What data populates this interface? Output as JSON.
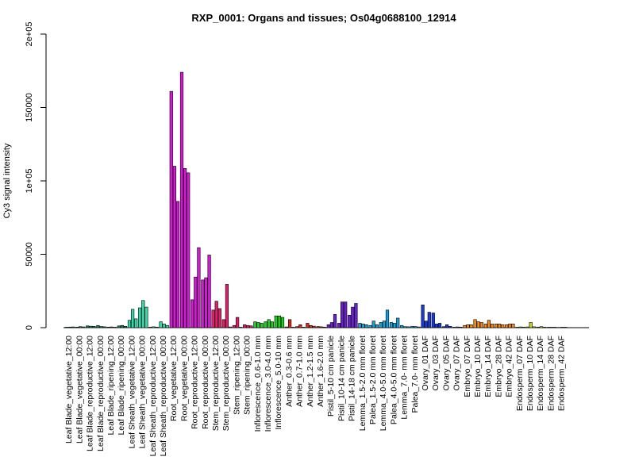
{
  "chart_data": {
    "type": "bar",
    "title": "RXP_0001: Organs and tissues; Os04g0688100_12914",
    "xlabel": "",
    "ylabel": "Cy3 signal intensity",
    "ylim": [
      0,
      200000
    ],
    "yticks": [
      {
        "value": 0,
        "label": "0"
      },
      {
        "value": 50000,
        "label": "50000"
      },
      {
        "value": 100000,
        "label": "1e+05"
      },
      {
        "value": 150000,
        "label": "150000"
      },
      {
        "value": 200000,
        "label": "2e+05"
      }
    ],
    "grid": false,
    "legend": "none",
    "groups": [
      {
        "label": "Leaf Blade_vegetative_12:00",
        "color": "#1a7f5a",
        "values": [
          300,
          400,
          500
        ]
      },
      {
        "label": "Leaf Blade_vegetative_00:00",
        "color": "#1a7f5a",
        "values": [
          400,
          700,
          500
        ]
      },
      {
        "label": "Leaf Blade_reproductive_12:00",
        "color": "#1a7f5a",
        "values": [
          1200,
          1000,
          900
        ]
      },
      {
        "label": "Leaf Blade_reproductive_00:00",
        "color": "#1a7f5a",
        "values": [
          1500,
          800,
          600
        ]
      },
      {
        "label": "Leaf Blade_ripening_12:00",
        "color": "#1a7f5a",
        "values": [
          400,
          500,
          300
        ]
      },
      {
        "label": "Leaf Blade_ripening_00:00",
        "color": "#1a7f5a",
        "values": [
          1200,
          1500,
          900
        ]
      },
      {
        "label": "Leaf Sheath_vegetative_12:00",
        "color": "#3ad6a8",
        "values": [
          5000,
          12500,
          6000
        ]
      },
      {
        "label": "Leaf Sheath_vegetative_00:00",
        "color": "#3ad6a8",
        "values": [
          13500,
          18500,
          14000
        ]
      },
      {
        "label": "Leaf Sheath_reproductive_12:00",
        "color": "#3ad6a8",
        "values": [
          400,
          600,
          400
        ]
      },
      {
        "label": "Leaf Sheath_reproductive_00:00",
        "color": "#3ad6a8",
        "values": [
          4000,
          2500,
          1500
        ]
      },
      {
        "label": "Root_vegetative_12:00",
        "color": "#d41ad4",
        "values": [
          161000,
          110000,
          86000
        ]
      },
      {
        "label": "Root_vegetative_00:00",
        "color": "#d41ad4",
        "values": [
          174000,
          108500,
          105500
        ]
      },
      {
        "label": "Root_reproductive_12:00",
        "color": "#d41ad4",
        "values": [
          19000,
          34500,
          54500
        ]
      },
      {
        "label": "Root_reproductive_00:00",
        "color": "#d41ad4",
        "values": [
          32500,
          34000,
          49500
        ]
      },
      {
        "label": "Stem_reproductive_12:00",
        "color": "#e0206a",
        "values": [
          12000,
          18000,
          13000
        ]
      },
      {
        "label": "Stem_reproductive_00:00",
        "color": "#e0206a",
        "values": [
          5500,
          29500,
          500
        ]
      },
      {
        "label": "Stem_ripening_12:00",
        "color": "#e0206a",
        "values": [
          1500,
          7000,
          300
        ]
      },
      {
        "label": "Stem_ripening_00:00",
        "color": "#e0206a",
        "values": [
          2000,
          1500,
          1200
        ]
      },
      {
        "label": "Inflorescence_0.6-1.0 mm",
        "color": "#22cc22",
        "values": [
          4000,
          3500,
          3000
        ]
      },
      {
        "label": "Inflorescence_3.0-4.0 mm",
        "color": "#22cc22",
        "values": [
          4000,
          5500,
          4000
        ]
      },
      {
        "label": "Inflorescence_5.0-10 mm",
        "color": "#22cc22",
        "values": [
          8000,
          8000,
          7000
        ]
      },
      {
        "label": "Anther_0.3-0.6 mm",
        "color": "#d42a1a",
        "values": [
          500,
          5500,
          300
        ]
      },
      {
        "label": "Anther_0.7-1.0 mm",
        "color": "#d42a1a",
        "values": [
          700,
          2000,
          300
        ]
      },
      {
        "label": "Anther_1.2-1.5 mm",
        "color": "#d42a1a",
        "values": [
          3000,
          1500,
          1000
        ]
      },
      {
        "label": "Anther_1.6-2.0 mm",
        "color": "#d42a1a",
        "values": [
          800,
          600,
          400
        ]
      },
      {
        "label": "Pistil_5-10 cm panicle",
        "color": "#6a22cc",
        "values": [
          2000,
          3500,
          9000
        ]
      },
      {
        "label": "Pistil_10-14 cm panicle",
        "color": "#6a22cc",
        "values": [
          3000,
          17500,
          17500
        ]
      },
      {
        "label": "Pistil_14-18 cm panicle",
        "color": "#6a22cc",
        "values": [
          8500,
          14000,
          16500
        ]
      },
      {
        "label": "Lemma_1.5-2.0 mm floret",
        "color": "#1aa0d8",
        "values": [
          3000,
          2500,
          2000
        ]
      },
      {
        "label": "Palea_1.5-2.0 mm floret",
        "color": "#1aa0d8",
        "values": [
          1500,
          4500,
          2000
        ]
      },
      {
        "label": "Lemma_4.0-5.0 mm floret",
        "color": "#1aa0d8",
        "values": [
          3500,
          4500,
          12000
        ]
      },
      {
        "label": "Palea_4.0-5.0 mm floret",
        "color": "#1aa0d8",
        "values": [
          3500,
          3000,
          6500
        ]
      },
      {
        "label": "Lemma_7.0- mm floret",
        "color": "#1aa0d8",
        "values": [
          1500,
          700,
          600
        ]
      },
      {
        "label": "Palea_7.0- mm floret",
        "color": "#1aa0d8",
        "values": [
          900,
          800,
          500
        ]
      },
      {
        "label": "Ovary_01 DAF",
        "color": "#1a3ad4",
        "values": [
          15500,
          4500,
          10500
        ]
      },
      {
        "label": "Ovary_03 DAF",
        "color": "#1a3ad4",
        "values": [
          10000,
          2500,
          3000
        ]
      },
      {
        "label": "Ovary_05 DAF",
        "color": "#1a3ad4",
        "values": [
          700,
          2000,
          900
        ]
      },
      {
        "label": "Ovary_07 DAF",
        "color": "#1a3ad4",
        "values": [
          300,
          500,
          400
        ]
      },
      {
        "label": "Embryo_07 DAF",
        "color": "#f08a1a",
        "values": [
          1500,
          2000,
          2000
        ]
      },
      {
        "label": "Embryo_10 DAF",
        "color": "#f08a1a",
        "values": [
          5500,
          4000,
          3500
        ]
      },
      {
        "label": "Embryo_14 DAF",
        "color": "#f08a1a",
        "values": [
          2500,
          5000,
          2500
        ]
      },
      {
        "label": "Embryo_28 DAF",
        "color": "#f08a1a",
        "values": [
          2500,
          2500,
          2000
        ]
      },
      {
        "label": "Embryo_42 DAF",
        "color": "#f08a1a",
        "values": [
          2000,
          2500,
          2500
        ]
      },
      {
        "label": "Endosperm_07 DAF",
        "color": "#c8d41a",
        "values": [
          300,
          500,
          400
        ]
      },
      {
        "label": "Endosperm_10 DAF",
        "color": "#c8d41a",
        "values": [
          500,
          3500,
          600
        ]
      },
      {
        "label": "Endosperm_14 DAF",
        "color": "#c8d41a",
        "values": [
          400,
          700,
          300
        ]
      },
      {
        "label": "Endosperm_28 DAF",
        "color": "#c8d41a",
        "values": [
          300,
          300,
          300
        ]
      },
      {
        "label": "Endosperm_42 DAF",
        "color": "#c8d41a",
        "values": [
          200,
          300,
          300
        ]
      }
    ]
  }
}
